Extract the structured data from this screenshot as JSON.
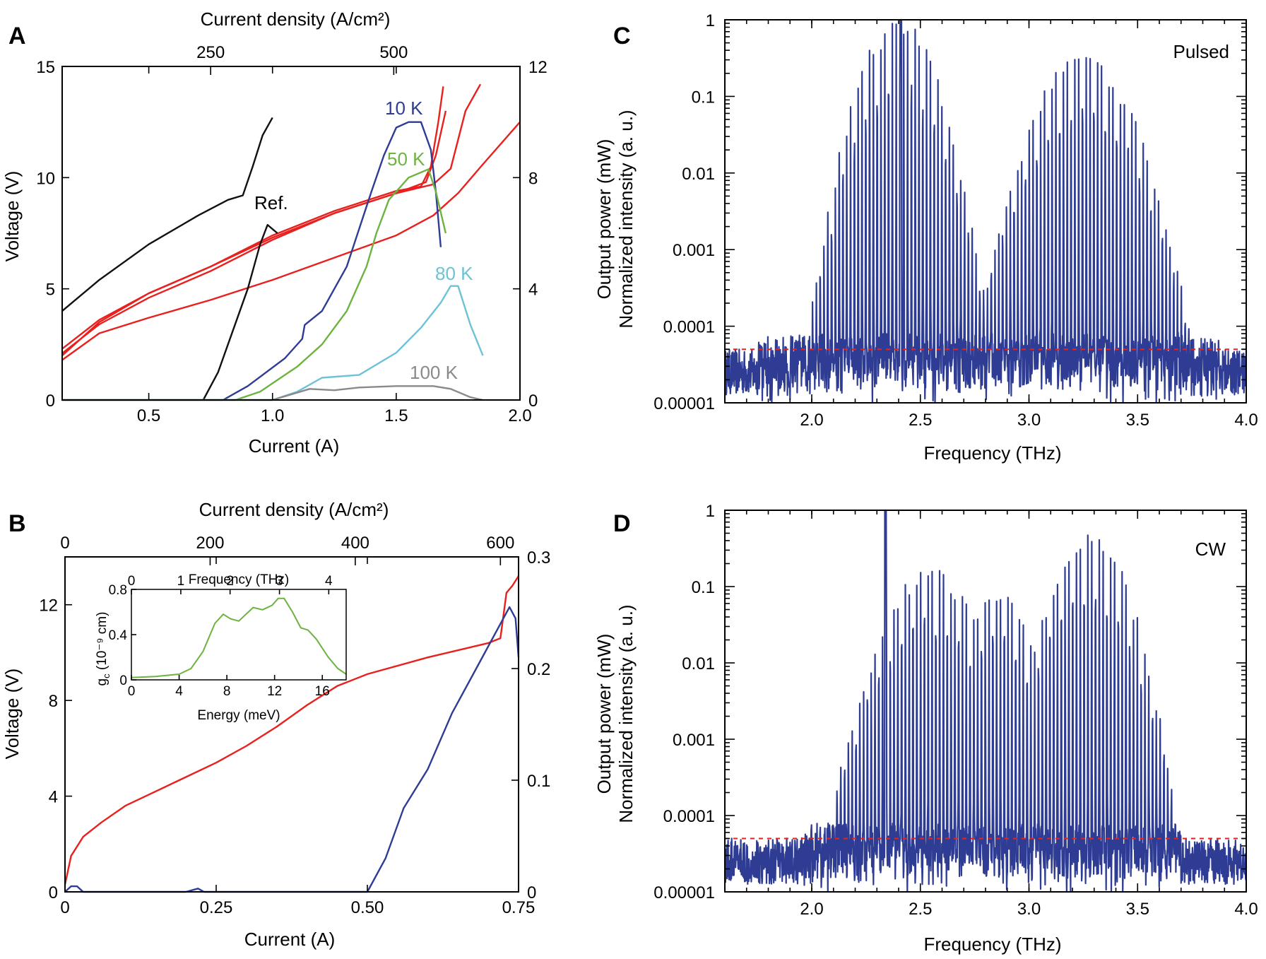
{
  "colors": {
    "red": "#e8201e",
    "blue": "#2e3c94",
    "green": "#6db33f",
    "cyan": "#6cc3d5",
    "gray": "#8a8a8a",
    "black": "#111111",
    "dashed": "#e8201e"
  },
  "panels": {
    "A": {
      "letter": "A"
    },
    "B": {
      "letter": "B"
    },
    "C": {
      "letter": "C"
    },
    "D": {
      "letter": "D"
    }
  },
  "chart_data": [
    {
      "id": "A",
      "type": "line",
      "xlabel": "Current (A)",
      "ylabel": "Voltage (V)",
      "top_xlabel": "Current density (A/cm²)",
      "xlim": [
        0.15,
        2.0
      ],
      "ylim": [
        0,
        15
      ],
      "y2lim": [
        0,
        12
      ],
      "xticks": [
        "0.5",
        "1.0",
        "1.5",
        "2.0"
      ],
      "xtick_values": [
        0.5,
        1.0,
        1.5,
        2.0
      ],
      "yticks": [
        "0",
        "5",
        "10",
        "15"
      ],
      "ytick_values": [
        0,
        5,
        10,
        15
      ],
      "y2ticks": [
        "0",
        "4",
        "8",
        "12"
      ],
      "y2tick_values": [
        0,
        4,
        8,
        12
      ],
      "top_ticks": [
        "250",
        "500"
      ],
      "top_tick_current": [
        0.75,
        1.49
      ],
      "labels": [
        "10 K",
        "50 K",
        "80 K",
        "100 K",
        "Ref."
      ],
      "series": [
        {
          "name": "IV 10 K",
          "axis": "y",
          "color": "red",
          "points": [
            [
              0.15,
              2.3
            ],
            [
              0.3,
              3.6
            ],
            [
              0.5,
              4.8
            ],
            [
              0.75,
              6.0
            ],
            [
              1.0,
              7.4
            ],
            [
              1.25,
              8.5
            ],
            [
              1.5,
              9.4
            ],
            [
              1.6,
              9.6
            ],
            [
              1.64,
              10.5
            ],
            [
              1.67,
              12.5
            ],
            [
              1.69,
              14.1
            ]
          ]
        },
        {
          "name": "IV 50 K",
          "axis": "y",
          "color": "red",
          "points": [
            [
              0.15,
              2.1
            ],
            [
              0.3,
              3.4
            ],
            [
              0.5,
              4.6
            ],
            [
              0.75,
              5.8
            ],
            [
              1.0,
              7.2
            ],
            [
              1.25,
              8.4
            ],
            [
              1.5,
              9.3
            ],
            [
              1.62,
              9.8
            ],
            [
              1.66,
              11.0
            ],
            [
              1.7,
              13.0
            ]
          ]
        },
        {
          "name": "IV 80 K",
          "axis": "y",
          "color": "red",
          "points": [
            [
              0.15,
              2.0
            ],
            [
              0.3,
              3.5
            ],
            [
              0.5,
              4.8
            ],
            [
              0.75,
              6.0
            ],
            [
              1.0,
              7.3
            ],
            [
              1.25,
              8.4
            ],
            [
              1.5,
              9.3
            ],
            [
              1.65,
              9.7
            ],
            [
              1.72,
              10.4
            ],
            [
              1.78,
              13.0
            ],
            [
              1.84,
              14.2
            ]
          ]
        },
        {
          "name": "IV 100 K",
          "axis": "y",
          "color": "red",
          "points": [
            [
              0.15,
              1.8
            ],
            [
              0.3,
              3.0
            ],
            [
              0.5,
              3.7
            ],
            [
              0.75,
              4.5
            ],
            [
              1.0,
              5.4
            ],
            [
              1.25,
              6.4
            ],
            [
              1.5,
              7.4
            ],
            [
              1.65,
              8.3
            ],
            [
              1.75,
              9.3
            ],
            [
              1.85,
              10.6
            ],
            [
              2.0,
              12.5
            ]
          ]
        },
        {
          "name": "IV Ref.",
          "axis": "y",
          "color": "black",
          "points": [
            [
              0.15,
              4.0
            ],
            [
              0.3,
              5.4
            ],
            [
              0.5,
              7.0
            ],
            [
              0.7,
              8.3
            ],
            [
              0.82,
              9.0
            ],
            [
              0.88,
              9.2
            ],
            [
              0.92,
              10.5
            ],
            [
              0.96,
              11.9
            ],
            [
              1.0,
              12.7
            ]
          ]
        },
        {
          "name": "LI Ref.",
          "axis": "y2",
          "color": "black",
          "points": [
            [
              0.72,
              0.0
            ],
            [
              0.78,
              1.0
            ],
            [
              0.84,
              2.5
            ],
            [
              0.9,
              4.0
            ],
            [
              0.95,
              5.6
            ],
            [
              0.98,
              6.3
            ],
            [
              1.02,
              6.0
            ]
          ]
        },
        {
          "name": "LI 10 K",
          "axis": "y2",
          "color": "blue",
          "points": [
            [
              0.15,
              0.0
            ],
            [
              0.8,
              0.0
            ],
            [
              0.9,
              0.5
            ],
            [
              1.05,
              1.5
            ],
            [
              1.12,
              2.2
            ],
            [
              1.13,
              2.7
            ],
            [
              1.2,
              3.2
            ],
            [
              1.3,
              4.8
            ],
            [
              1.4,
              7.5
            ],
            [
              1.45,
              8.8
            ],
            [
              1.5,
              9.8
            ],
            [
              1.55,
              10.0
            ],
            [
              1.6,
              10.0
            ],
            [
              1.64,
              9.0
            ],
            [
              1.66,
              7.5
            ],
            [
              1.68,
              5.5
            ]
          ]
        },
        {
          "name": "LI 50 K",
          "axis": "y2",
          "color": "green",
          "points": [
            [
              0.15,
              0.0
            ],
            [
              0.85,
              0.0
            ],
            [
              0.95,
              0.3
            ],
            [
              1.1,
              1.2
            ],
            [
              1.2,
              2.0
            ],
            [
              1.3,
              3.2
            ],
            [
              1.38,
              4.8
            ],
            [
              1.42,
              6.0
            ],
            [
              1.47,
              7.2
            ],
            [
              1.55,
              8.0
            ],
            [
              1.63,
              8.3
            ],
            [
              1.66,
              7.5
            ],
            [
              1.7,
              6.0
            ]
          ]
        },
        {
          "name": "LI 80 K",
          "axis": "y2",
          "color": "cyan",
          "points": [
            [
              0.15,
              0.0
            ],
            [
              1.0,
              0.0
            ],
            [
              1.1,
              0.3
            ],
            [
              1.2,
              0.8
            ],
            [
              1.35,
              0.9
            ],
            [
              1.5,
              1.7
            ],
            [
              1.6,
              2.6
            ],
            [
              1.68,
              3.5
            ],
            [
              1.72,
              4.1
            ],
            [
              1.75,
              4.1
            ],
            [
              1.8,
              2.7
            ],
            [
              1.85,
              1.6
            ]
          ]
        },
        {
          "name": "LI 100 K",
          "axis": "y2",
          "color": "gray",
          "points": [
            [
              0.15,
              0.0
            ],
            [
              1.0,
              0.0
            ],
            [
              1.15,
              0.4
            ],
            [
              1.25,
              0.35
            ],
            [
              1.35,
              0.45
            ],
            [
              1.5,
              0.5
            ],
            [
              1.65,
              0.5
            ],
            [
              1.72,
              0.4
            ],
            [
              1.8,
              0.1
            ],
            [
              1.85,
              0.0
            ]
          ]
        }
      ]
    },
    {
      "id": "B",
      "type": "line",
      "xlabel": "Current (A)",
      "ylabel": "Voltage (V)",
      "top_xlabel": "Current density (A/cm²)",
      "xlim": [
        0,
        0.75
      ],
      "ylim": [
        0,
        14
      ],
      "y2lim": [
        0,
        0.3
      ],
      "xticks": [
        "0",
        "0.25",
        "0.50",
        "0.75"
      ],
      "xtick_values": [
        0,
        0.25,
        0.5,
        0.75
      ],
      "yticks": [
        "0",
        "4",
        "8",
        "12"
      ],
      "ytick_values": [
        0,
        4,
        8,
        12
      ],
      "y2ticks": [
        "0",
        "0.1",
        "0.2",
        "0.3"
      ],
      "y2tick_values": [
        0,
        0.1,
        0.2,
        0.3
      ],
      "top_ticks": [
        "0",
        "200",
        "400",
        "600"
      ],
      "top_tick_current": [
        0,
        0.24,
        0.48,
        0.72
      ],
      "series": [
        {
          "name": "IV",
          "axis": "y",
          "color": "red",
          "points": [
            [
              0.0,
              0.3
            ],
            [
              0.01,
              1.5
            ],
            [
              0.03,
              2.3
            ],
            [
              0.06,
              2.9
            ],
            [
              0.1,
              3.6
            ],
            [
              0.15,
              4.2
            ],
            [
              0.2,
              4.8
            ],
            [
              0.25,
              5.4
            ],
            [
              0.3,
              6.1
            ],
            [
              0.35,
              6.9
            ],
            [
              0.4,
              7.8
            ],
            [
              0.45,
              8.6
            ],
            [
              0.5,
              9.1
            ],
            [
              0.6,
              9.8
            ],
            [
              0.7,
              10.4
            ],
            [
              0.72,
              10.6
            ],
            [
              0.73,
              12.5
            ],
            [
              0.74,
              12.8
            ],
            [
              0.75,
              13.2
            ]
          ]
        },
        {
          "name": "LI",
          "axis": "y2",
          "color": "blue",
          "points": [
            [
              0.0,
              0.0
            ],
            [
              0.01,
              0.005
            ],
            [
              0.02,
              0.005
            ],
            [
              0.03,
              0.0
            ],
            [
              0.2,
              0.0
            ],
            [
              0.22,
              0.003
            ],
            [
              0.23,
              0.0
            ],
            [
              0.5,
              0.0
            ],
            [
              0.53,
              0.03
            ],
            [
              0.56,
              0.075
            ],
            [
              0.6,
              0.11
            ],
            [
              0.64,
              0.16
            ],
            [
              0.68,
              0.2
            ],
            [
              0.72,
              0.24
            ],
            [
              0.735,
              0.255
            ],
            [
              0.745,
              0.245
            ],
            [
              0.75,
              0.21
            ]
          ]
        }
      ],
      "inset": {
        "type": "line",
        "xlabel": "Energy (meV)",
        "ylabel": "g",
        "ylabel_sub": "c",
        "ylabel_rest": " (10⁻⁹ cm)",
        "top_xlabel": "Frequency (THz)",
        "xlim": [
          0,
          18
        ],
        "ylim": [
          0,
          0.8
        ],
        "xticks": [
          "0",
          "4",
          "8",
          "12",
          "16"
        ],
        "xtick_values": [
          0,
          4,
          8,
          12,
          16
        ],
        "yticks": [
          "0",
          "0.4",
          "0.8"
        ],
        "ytick_values": [
          0,
          0.4,
          0.8
        ],
        "top_ticks": [
          "0",
          "1",
          "2",
          "3",
          "4"
        ],
        "top_tick_energy": [
          0,
          4.14,
          8.27,
          12.41,
          16.54
        ],
        "series": [
          {
            "name": "gain",
            "color": "green",
            "points": [
              [
                0,
                0.02
              ],
              [
                2,
                0.03
              ],
              [
                4,
                0.05
              ],
              [
                5,
                0.1
              ],
              [
                6,
                0.25
              ],
              [
                7,
                0.5
              ],
              [
                7.7,
                0.58
              ],
              [
                8.3,
                0.54
              ],
              [
                9,
                0.52
              ],
              [
                10.2,
                0.64
              ],
              [
                11,
                0.62
              ],
              [
                11.8,
                0.66
              ],
              [
                12.3,
                0.72
              ],
              [
                12.8,
                0.72
              ],
              [
                13.5,
                0.6
              ],
              [
                14.2,
                0.46
              ],
              [
                14.8,
                0.44
              ],
              [
                15.5,
                0.36
              ],
              [
                16.5,
                0.2
              ],
              [
                17.3,
                0.1
              ],
              [
                18,
                0.05
              ]
            ]
          }
        ]
      }
    },
    {
      "id": "C",
      "type": "line",
      "xlabel": "Frequency (THz)",
      "ylabel_line1": "Output power (mW)",
      "ylabel_line2": "Normalized intensity (a. u.)",
      "label": "Pulsed",
      "xlim": [
        1.6,
        4.0
      ],
      "yscale": "log",
      "ylim": [
        1e-05,
        1
      ],
      "xticks": [
        "2.0",
        "2.5",
        "3.0",
        "3.5",
        "4.0"
      ],
      "xtick_values": [
        2.0,
        2.5,
        3.0,
        3.5,
        4.0
      ],
      "yticks": [
        "0.00001",
        "0.0001",
        "0.001",
        "0.01",
        "0.1",
        "1"
      ],
      "ytick_values": [
        1e-05,
        0.0001,
        0.001,
        0.01,
        0.1,
        1
      ],
      "noise_floor": 5e-05,
      "spectrum": {
        "comb_start": 1.75,
        "comb_end": 3.88,
        "mode_spacing": 0.0175,
        "lobes": [
          {
            "center": 2.4,
            "width": 0.16,
            "peak_log": 0
          },
          {
            "center": 3.25,
            "width": 0.2,
            "peak_log": -0.45
          }
        ],
        "strongest_line": 2.41
      }
    },
    {
      "id": "D",
      "type": "line",
      "xlabel": "Frequency (THz)",
      "ylabel_line1": "Output power (mW)",
      "ylabel_line2": "Normalized intensity (a. u.)",
      "label": "CW",
      "xlim": [
        1.6,
        4.0
      ],
      "yscale": "log",
      "ylim": [
        1e-05,
        1
      ],
      "xticks": [
        "2.0",
        "2.5",
        "3.0",
        "3.5",
        "4.0"
      ],
      "xtick_values": [
        2.0,
        2.5,
        3.0,
        3.5,
        4.0
      ],
      "yticks": [
        "0.00001",
        "0.0001",
        "0.001",
        "0.01",
        "0.1",
        "1"
      ],
      "ytick_values": [
        1e-05,
        0.0001,
        0.001,
        0.01,
        0.1,
        1
      ],
      "noise_floor": 5e-05,
      "spectrum": {
        "comb_start": 1.95,
        "comb_end": 3.7,
        "mode_spacing": 0.0175,
        "lobes": [
          {
            "center": 2.55,
            "width": 0.2,
            "peak_log": -0.8
          },
          {
            "center": 2.85,
            "width": 0.14,
            "peak_log": -1.0
          },
          {
            "center": 3.28,
            "width": 0.16,
            "peak_log": -0.3
          }
        ],
        "strongest_line": 2.34
      }
    }
  ]
}
